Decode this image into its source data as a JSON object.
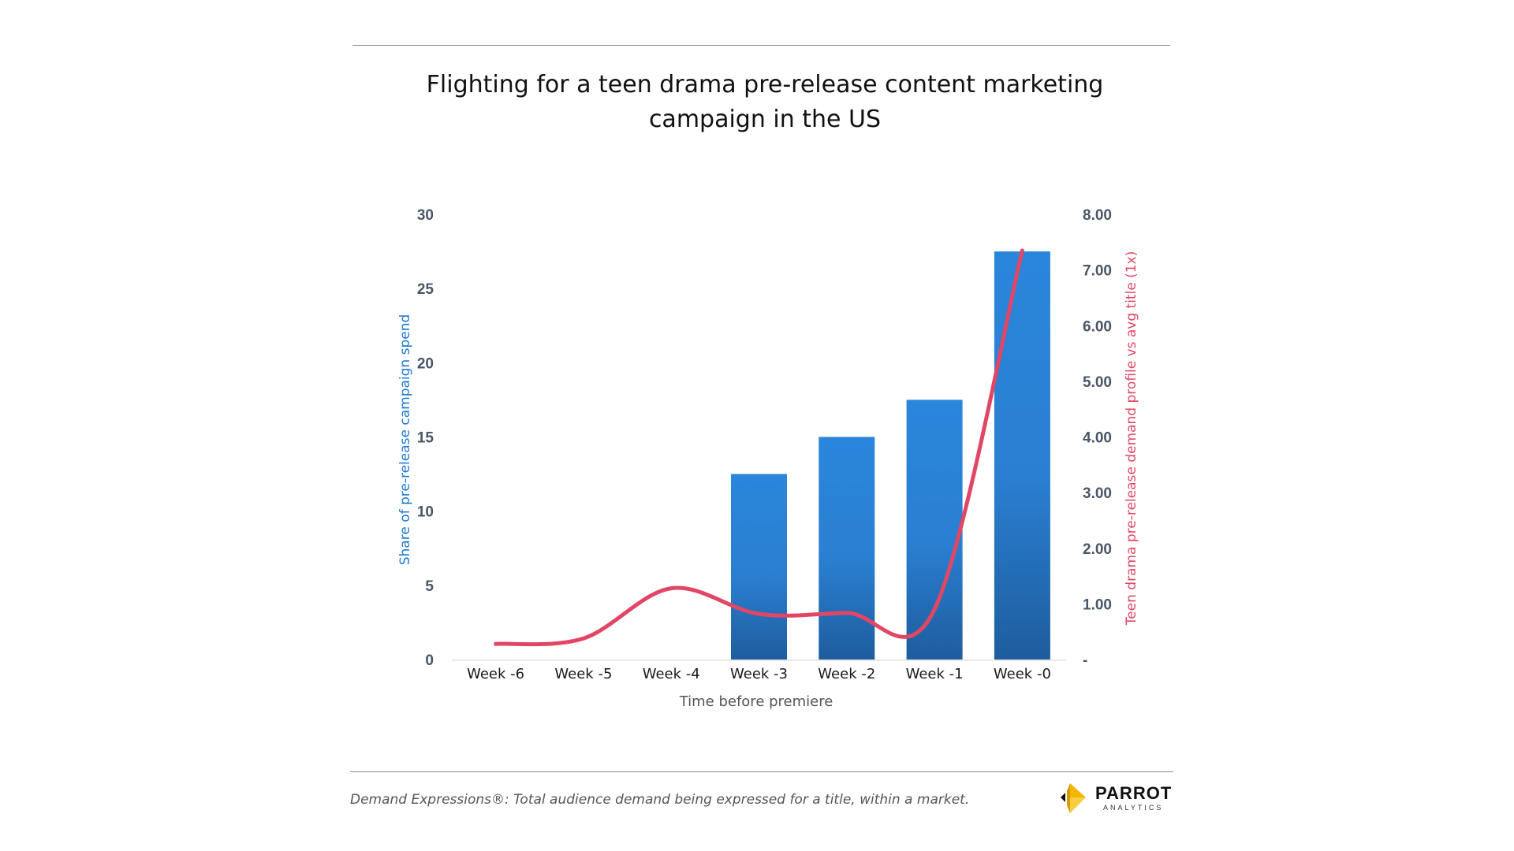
{
  "header": {
    "title_line1": "Flighting for a teen drama pre-release content marketing",
    "title_line2": "campaign in the US"
  },
  "chart_data": {
    "type": "bar",
    "title": "Flighting for a teen drama pre-release content marketing campaign in the US",
    "categories": [
      "Week -6",
      "Week -5",
      "Week -4",
      "Week -3",
      "Week -2",
      "Week -1",
      "Week -0"
    ],
    "xlabel": "Time before premiere",
    "series": [
      {
        "type": "bar",
        "axis": "left",
        "values": [
          0,
          0,
          0,
          12.5,
          15,
          17.5,
          27.5
        ],
        "color": "#2a86db"
      },
      {
        "type": "line",
        "axis": "right",
        "values": [
          0.28,
          0.38,
          1.28,
          0.82,
          0.84,
          0.9,
          7.35
        ],
        "color": "#e14764",
        "smooth": true
      }
    ],
    "y_left": {
      "label": "Share of pre-release campaign spend",
      "ylim": [
        0,
        30
      ],
      "ticks": [
        "0",
        "5",
        "10",
        "15",
        "20",
        "25",
        "30"
      ]
    },
    "y_right": {
      "label": "Teen drama pre-release demand profile vs avg title (1x)",
      "ylim": [
        0,
        8
      ],
      "ticks": [
        "-",
        "1.00",
        "2.00",
        "3.00",
        "4.00",
        "5.00",
        "6.00",
        "7.00",
        "8.00"
      ]
    },
    "grid": false,
    "legend": "none"
  },
  "footer": {
    "note": "Demand Expressions®:  Total audience demand being expressed for a title, within a market.",
    "logo_name": "PARROT",
    "logo_sub": "ANALYTICS"
  }
}
